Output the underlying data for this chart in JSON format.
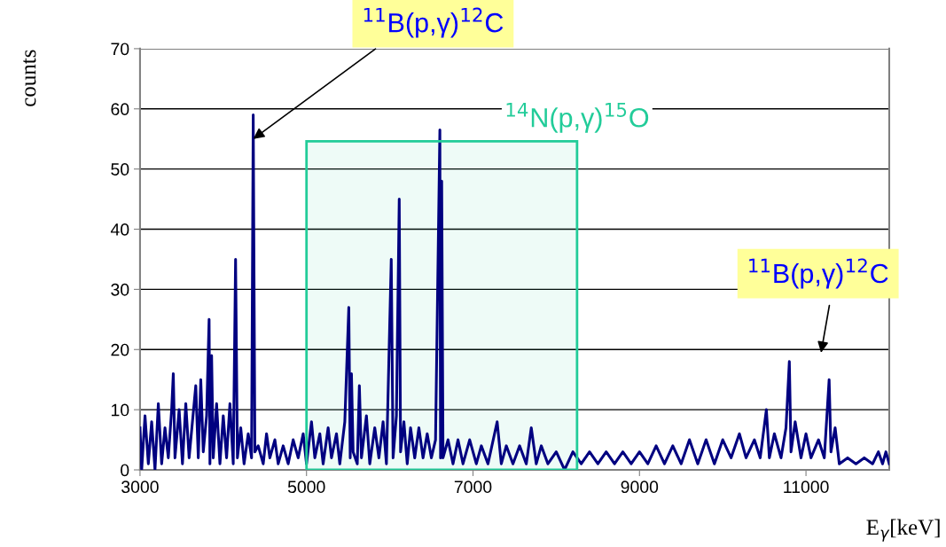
{
  "chart_data": {
    "type": "line",
    "xlabel": "E$_{γ}$[keV]",
    "ylabel": "counts",
    "xlim": [
      3000,
      12000
    ],
    "xticks": [
      3000,
      5000,
      7000,
      9000,
      11000
    ],
    "ylim": [
      0,
      70
    ],
    "yticks": [
      0,
      10,
      20,
      30,
      40,
      50,
      60,
      70
    ],
    "grid": "y",
    "legend": false,
    "marker": "none",
    "line_style": "solid",
    "x": [
      3000,
      3020,
      3060,
      3100,
      3140,
      3180,
      3220,
      3260,
      3300,
      3340,
      3380,
      3400,
      3420,
      3470,
      3510,
      3550,
      3590,
      3630,
      3670,
      3700,
      3730,
      3760,
      3800,
      3830,
      3840,
      3860,
      3880,
      3920,
      3960,
      4000,
      4040,
      4080,
      4120,
      4148,
      4170,
      4210,
      4250,
      4300,
      4340,
      4360,
      4380,
      4420,
      4480,
      4520,
      4560,
      4620,
      4660,
      4720,
      4780,
      4840,
      4900,
      4960,
      5000,
      5060,
      5100,
      5160,
      5200,
      5260,
      5300,
      5360,
      5400,
      5460,
      5508,
      5525,
      5540,
      5560,
      5610,
      5635,
      5660,
      5720,
      5760,
      5820,
      5870,
      5920,
      5960,
      6018,
      6040,
      6080,
      6114,
      6130,
      6170,
      6210,
      6250,
      6300,
      6350,
      6400,
      6450,
      6500,
      6550,
      6602,
      6610,
      6624,
      6640,
      6700,
      6760,
      6820,
      6880,
      6960,
      7040,
      7100,
      7180,
      7290,
      7340,
      7400,
      7480,
      7560,
      7640,
      7700,
      7760,
      7820,
      7900,
      8000,
      8100,
      8200,
      8300,
      8400,
      8500,
      8600,
      8700,
      8800,
      8900,
      9000,
      9100,
      9200,
      9300,
      9400,
      9500,
      9600,
      9700,
      9800,
      9900,
      10000,
      10100,
      10200,
      10280,
      10380,
      10450,
      10524,
      10560,
      10620,
      10700,
      10760,
      10800,
      10820,
      10870,
      10940,
      11000,
      11060,
      11150,
      11220,
      11278,
      11300,
      11350,
      11400,
      11500,
      11600,
      11700,
      11800,
      11870,
      11920,
      11960,
      12000
    ],
    "series": [
      {
        "color": "#000080",
        "values": [
          7,
          0,
          9,
          1,
          8,
          0,
          11,
          1,
          7,
          2,
          10,
          16,
          2,
          10,
          1,
          11,
          2,
          8,
          14,
          2,
          15,
          3,
          9,
          25,
          1,
          19,
          2,
          11,
          1,
          9,
          2,
          11,
          1,
          35,
          2,
          7,
          1,
          6,
          2,
          59,
          3,
          4,
          1,
          6,
          2,
          5,
          1,
          4,
          1,
          5,
          2,
          6,
          1,
          8,
          2,
          6,
          1,
          7,
          2,
          6,
          1,
          8,
          27,
          2,
          16,
          3,
          1,
          14,
          2,
          9,
          1,
          7,
          2,
          8,
          1,
          35,
          2,
          9,
          45,
          3,
          8,
          1,
          7,
          2,
          7,
          2,
          6,
          2,
          5,
          56.5,
          2,
          48,
          2,
          5,
          1,
          5,
          1,
          5,
          1,
          4,
          1,
          8,
          1,
          4,
          1,
          4,
          1,
          7,
          1,
          4,
          1,
          3,
          0,
          3,
          1,
          3,
          1,
          3,
          1,
          3,
          1,
          3,
          1,
          4,
          1,
          4,
          1,
          5,
          1,
          5,
          1,
          5,
          2,
          6,
          2,
          5,
          2,
          10,
          2,
          6,
          2,
          7,
          18,
          3,
          8,
          2,
          6,
          2,
          5,
          2,
          15,
          3,
          7,
          1,
          2,
          1,
          2,
          1,
          3,
          1,
          3,
          1
        ]
      }
    ],
    "bands": [
      {
        "axis": "x",
        "from": 5000,
        "to": 8250,
        "label": "$^{14}$N(p,γ)$^{15}$O",
        "color": "#22cc99"
      }
    ],
    "annotations": [
      {
        "text": "$^{11}$B(p,γ)$^{12}$C",
        "x": 4360,
        "y": 55
      },
      "$^{11}$B(p,γ)$^{12}$C"
    ]
  }
}
